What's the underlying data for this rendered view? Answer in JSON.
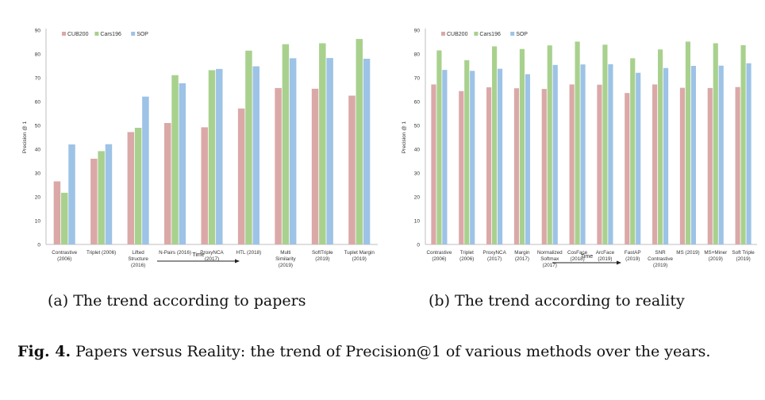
{
  "chart_data": [
    {
      "type": "bar",
      "ylabel": "Precision @ 1",
      "xlabel": "Time",
      "ylim": [
        0,
        90
      ],
      "yticks": [
        0,
        10,
        20,
        30,
        40,
        50,
        60,
        70,
        80,
        90
      ],
      "legend_position": "top-left",
      "categories": [
        [
          "Contrastive",
          "(2006)"
        ],
        [
          "Triplet (2006)"
        ],
        [
          "Lifted",
          "Structure",
          "(2016)"
        ],
        [
          "N-Pairs (2016)"
        ],
        [
          "ProxyNCA",
          "(2017)"
        ],
        [
          "HTL (2018)"
        ],
        [
          "Multi",
          "Similarity",
          "(2019)"
        ],
        [
          "SoftTriple",
          "(2019)"
        ],
        [
          "Tuplet Margin",
          "(2019)"
        ]
      ],
      "series": [
        {
          "name": "CUB200",
          "color": "#dba8a8",
          "values": [
            26.5,
            36,
            47.2,
            51,
            49.2,
            57.1,
            65.7,
            65.4,
            62.5
          ]
        },
        {
          "name": "Cars196",
          "color": "#a9d18e",
          "values": [
            21.7,
            39.2,
            49,
            71.1,
            73.2,
            81.4,
            84.1,
            84.5,
            86.3
          ]
        },
        {
          "name": "SOP",
          "color": "#9dc3e6",
          "values": [
            42,
            42.1,
            62.1,
            67.7,
            73.7,
            74.8,
            78.2,
            78.3,
            78
          ]
        }
      ]
    },
    {
      "type": "bar",
      "ylabel": "Precision @ 1",
      "xlabel": "Time",
      "ylim": [
        0,
        90
      ],
      "yticks": [
        0,
        10,
        20,
        30,
        40,
        50,
        60,
        70,
        80,
        90
      ],
      "legend_position": "top-left",
      "categories": [
        [
          "Contrastive",
          "(2006)"
        ],
        [
          "Triplet",
          "(2006)"
        ],
        [
          "ProxyNCA",
          "(2017)"
        ],
        [
          "Margin",
          "(2017)"
        ],
        [
          "Normalized",
          "Softmax",
          "(2017)"
        ],
        [
          "CosFace",
          "(2018)"
        ],
        [
          "ArcFace",
          "(2019)"
        ],
        [
          "FastAP",
          "(2019)"
        ],
        [
          "SNR",
          "Contrastive",
          "(2019)"
        ],
        [
          "MS (2019)"
        ],
        [
          "MS+Miner",
          "(2019)"
        ],
        [
          "Soft Triple",
          "(2019)"
        ]
      ],
      "series": [
        {
          "name": "CUB200",
          "color": "#dba8a8",
          "values": [
            67.2,
            64.4,
            66,
            65.6,
            65.3,
            67.2,
            67.1,
            63.6,
            67.2,
            65.8,
            65.7,
            66.1
          ]
        },
        {
          "name": "Cars196",
          "color": "#a9d18e",
          "values": [
            81.5,
            77.4,
            83.2,
            82.1,
            83.6,
            85.2,
            83.9,
            78.2,
            81.9,
            85.2,
            84.5,
            83.7
          ]
        },
        {
          "name": "SOP",
          "color": "#9dc3e6",
          "values": [
            73.3,
            72.9,
            73.8,
            71.5,
            75.4,
            75.6,
            75.7,
            72.1,
            74.1,
            75,
            75.1,
            76.1
          ]
        }
      ]
    }
  ],
  "captions": {
    "a": "(a) The trend according to papers",
    "b": "(b) The trend according to reality"
  },
  "figure_caption": {
    "label": "Fig. 4.",
    "text": "Papers versus Reality: the trend of Precision@1 of various methods over the years."
  }
}
